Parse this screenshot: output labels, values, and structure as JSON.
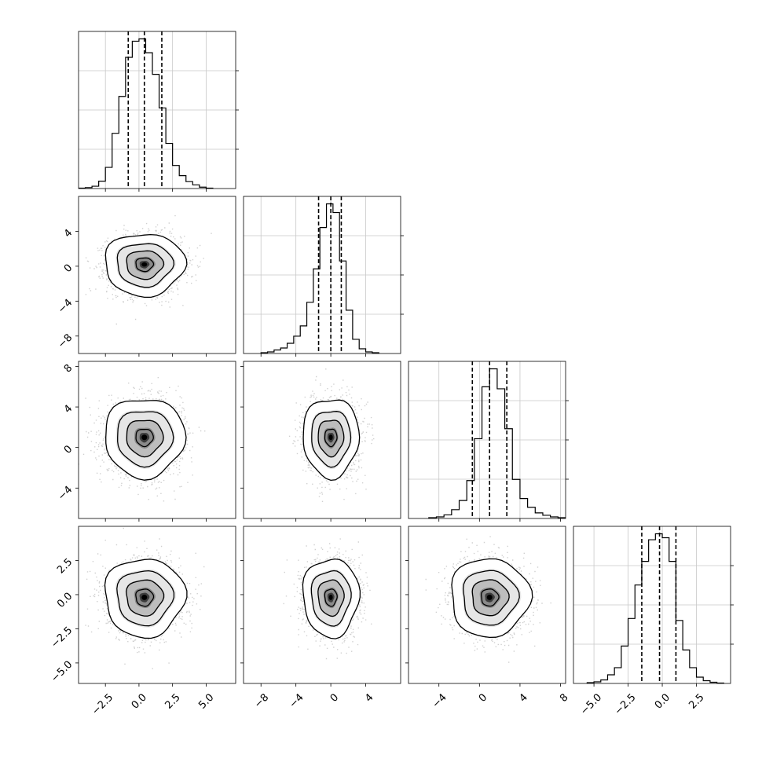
{
  "chart_data": [
    {
      "type": "histogram",
      "parameter_index": 0,
      "quantiles": [
        -0.8,
        0.4,
        1.7
      ],
      "x_range": [
        -4.5,
        7.2
      ],
      "x_ticks": [
        -2.5,
        0.0,
        2.5,
        5.0
      ],
      "x_tick_labels": [
        "−2.5",
        "0.0",
        "2.5",
        "5.0"
      ],
      "bin_edges": [
        -4.5,
        -4.0,
        -3.5,
        -3.0,
        -2.5,
        -2.0,
        -1.5,
        -1.0,
        -0.5,
        0.0,
        0.5,
        1.0,
        1.5,
        2.0,
        2.5,
        3.0,
        3.5,
        4.0,
        4.5,
        5.0,
        5.5
      ],
      "counts": [
        1,
        2,
        5,
        16,
        46,
        120,
        200,
        285,
        320,
        325,
        295,
        248,
        175,
        98,
        50,
        28,
        15,
        8,
        3,
        1
      ],
      "grid": true
    },
    {
      "type": "histogram",
      "parameter_index": 1,
      "quantiles": [
        -1.4,
        0.0,
        1.2
      ],
      "x_range": [
        -10.0,
        8.0
      ],
      "x_ticks": [
        -8,
        -4,
        0,
        4
      ],
      "x_tick_labels": [
        "−8",
        "−4",
        "0",
        "4"
      ],
      "bin_edges": [
        -8.0,
        -7.25,
        -6.5,
        -5.75,
        -5.0,
        -4.25,
        -3.5,
        -2.75,
        -2.0,
        -1.25,
        -0.5,
        0.25,
        1.0,
        1.75,
        2.5,
        3.25,
        4.0,
        4.75,
        5.5
      ],
      "counts": [
        2,
        4,
        9,
        14,
        26,
        44,
        70,
        130,
        215,
        320,
        380,
        358,
        235,
        110,
        36,
        12,
        4,
        2
      ],
      "grid": true
    },
    {
      "type": "histogram",
      "parameter_index": 2,
      "quantiles": [
        -0.7,
        1.0,
        2.7
      ],
      "x_range": [
        -7.0,
        8.5
      ],
      "x_ticks": [
        -4,
        0,
        4,
        8
      ],
      "x_tick_labels": [
        "−4",
        "0",
        "4",
        "8"
      ],
      "bin_edges": [
        -5.0,
        -4.25,
        -3.5,
        -2.75,
        -2.0,
        -1.25,
        -0.5,
        0.25,
        1.0,
        1.75,
        2.5,
        3.25,
        4.0,
        4.75,
        5.5,
        6.25,
        7.0,
        7.75,
        8.5
      ],
      "counts": [
        2,
        4,
        9,
        22,
        45,
        95,
        200,
        330,
        375,
        325,
        225,
        98,
        50,
        28,
        14,
        8,
        4,
        2
      ],
      "grid": true
    },
    {
      "type": "histogram",
      "parameter_index": 3,
      "quantiles": [
        -1.5,
        -0.2,
        1.0
      ],
      "x_range": [
        -6.5,
        5.0
      ],
      "x_ticks": [
        -5.0,
        -2.5,
        0.0,
        2.5
      ],
      "x_tick_labels": [
        "−5.0",
        "−2.5",
        "0.0",
        "2.5"
      ],
      "bin_edges": [
        -5.5,
        -5.0,
        -4.5,
        -4.0,
        -3.5,
        -3.0,
        -2.5,
        -2.0,
        -1.5,
        -1.0,
        -0.5,
        0.0,
        0.5,
        1.0,
        1.5,
        2.0,
        2.5,
        3.0,
        3.5,
        4.0,
        4.5
      ],
      "counts": [
        2,
        4,
        9,
        22,
        40,
        95,
        165,
        250,
        310,
        365,
        380,
        370,
        310,
        160,
        85,
        40,
        16,
        7,
        3,
        1
      ],
      "grid": true
    },
    {
      "type": "contour",
      "x_parameter": 0,
      "y_parameter": 1,
      "center": [
        0.4,
        0.2
      ],
      "sigma": [
        1.3,
        1.55
      ],
      "y_range": [
        -10.0,
        8.0
      ],
      "y_ticks": [
        -8,
        -4,
        0,
        4
      ],
      "y_tick_labels": [
        "−8",
        "−4",
        "0",
        "4"
      ]
    },
    {
      "type": "contour",
      "x_parameter": 0,
      "y_parameter": 2,
      "center": [
        0.4,
        1.0
      ],
      "sigma": [
        1.3,
        1.7
      ],
      "y_range": [
        -7.0,
        8.5
      ],
      "y_ticks": [
        -4,
        0,
        4,
        8
      ],
      "y_tick_labels": [
        "−4",
        "0",
        "4",
        "8"
      ]
    },
    {
      "type": "contour",
      "x_parameter": 1,
      "y_parameter": 2,
      "center": [
        0.0,
        1.0
      ],
      "sigma": [
        1.4,
        1.7
      ]
    },
    {
      "type": "contour",
      "x_parameter": 0,
      "y_parameter": 3,
      "center": [
        0.4,
        -0.2
      ],
      "sigma": [
        1.3,
        1.25
      ],
      "y_range": [
        -6.5,
        5.0
      ],
      "y_ticks": [
        -5.0,
        -2.5,
        0.0,
        2.5
      ],
      "y_tick_labels": [
        "−5.0",
        "−2.5",
        "0.0",
        "2.5"
      ]
    },
    {
      "type": "contour",
      "x_parameter": 1,
      "y_parameter": 3,
      "center": [
        0.0,
        -0.2
      ],
      "sigma": [
        1.4,
        1.25
      ]
    },
    {
      "type": "contour",
      "x_parameter": 2,
      "y_parameter": 3,
      "center": [
        1.0,
        -0.2
      ],
      "sigma": [
        1.7,
        1.25
      ]
    }
  ]
}
